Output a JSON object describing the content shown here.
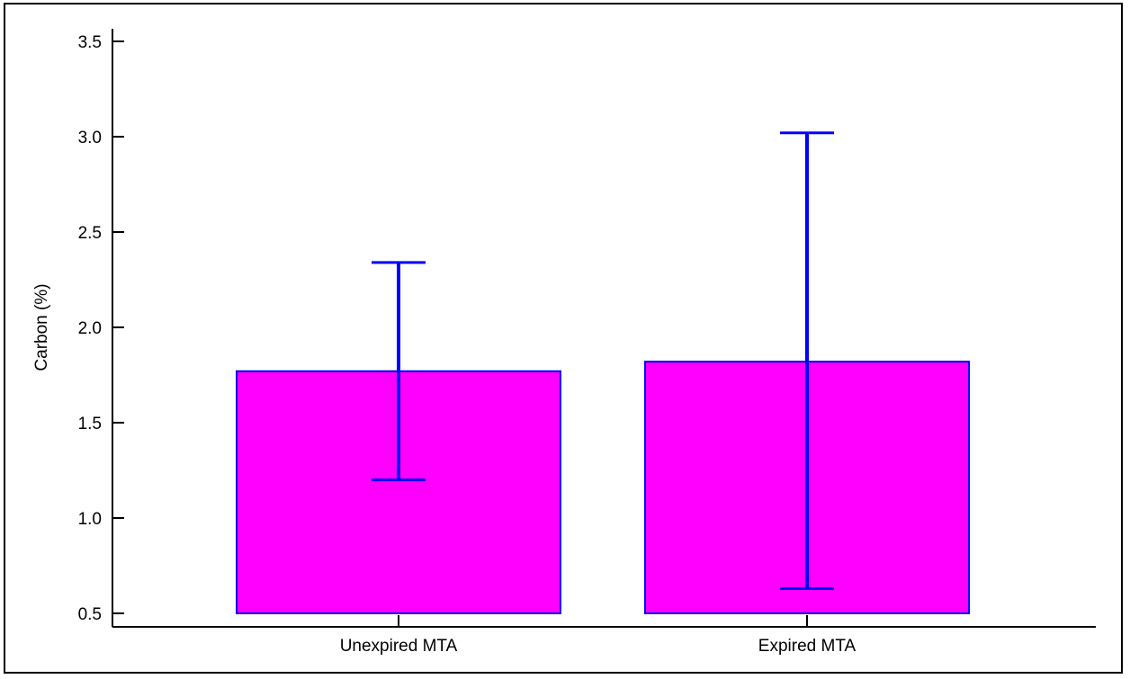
{
  "chart_data": {
    "type": "bar",
    "title": "",
    "xlabel": "",
    "ylabel": "Carbon (%)",
    "categories": [
      "Unexpired MTA",
      "Expired MTA"
    ],
    "values": [
      1.77,
      1.82
    ],
    "error_bars": [
      {
        "low": 1.2,
        "high": 2.34
      },
      {
        "low": 0.63,
        "high": 3.02
      }
    ],
    "ylim": [
      0.5,
      3.5
    ],
    "yticks": [
      0.5,
      1.0,
      1.5,
      2.0,
      2.5,
      3.0,
      3.5
    ],
    "ytick_labels": [
      "0.5",
      "1.0",
      "1.5",
      "2.0",
      "2.5",
      "3.0",
      "3.5"
    ],
    "grid": false,
    "legend": "none",
    "colors": {
      "bar_fill": "#ff00ff",
      "bar_edge": "#0000ff",
      "error_bar": "#0000ff",
      "axis": "#000000"
    }
  }
}
